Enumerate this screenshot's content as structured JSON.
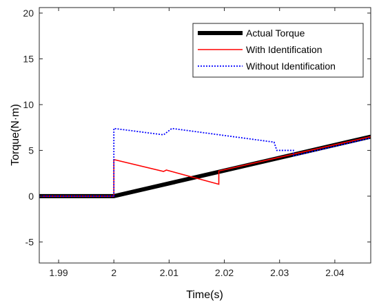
{
  "chart_data": {
    "type": "line",
    "xlabel": "Time(s)",
    "ylabel": "Torque(N·m)",
    "xlim": [
      1.9865,
      2.0465
    ],
    "ylim": [
      -7.3,
      20.6
    ],
    "xticks": [
      "1.99",
      "2",
      "2.01",
      "2.02",
      "2.03",
      "2.04"
    ],
    "xtick_values": [
      1.99,
      2.0,
      2.01,
      2.02,
      2.03,
      2.04
    ],
    "yticks": [
      "-5",
      "0",
      "5",
      "10",
      "15",
      "20"
    ],
    "ytick_values": [
      -5,
      0,
      5,
      10,
      15,
      20
    ],
    "grid": false,
    "legend_position": "top-right",
    "series": [
      {
        "name": "Actual Torque",
        "color": "#000000",
        "style": "solid-thick",
        "x": [
          1.9865,
          2.0,
          2.0465
        ],
        "y": [
          0.0,
          0.0,
          6.5
        ]
      },
      {
        "name": "With Identification",
        "color": "#ff0000",
        "style": "solid",
        "x": [
          1.9865,
          2.0,
          2.0,
          2.009,
          2.0095,
          2.019,
          2.019,
          2.0465
        ],
        "y": [
          0.0,
          0.0,
          4.0,
          2.7,
          2.85,
          1.3,
          2.75,
          6.5
        ]
      },
      {
        "name": "Without Identification",
        "color": "#0000ff",
        "style": "dotted",
        "x": [
          1.9865,
          2.0,
          2.0,
          2.009,
          2.0105,
          2.029,
          2.0295,
          2.0325,
          2.0325,
          2.0465
        ],
        "y": [
          0.0,
          0.0,
          7.4,
          6.7,
          7.4,
          5.9,
          5.0,
          5.0,
          4.4,
          6.35
        ]
      }
    ]
  }
}
